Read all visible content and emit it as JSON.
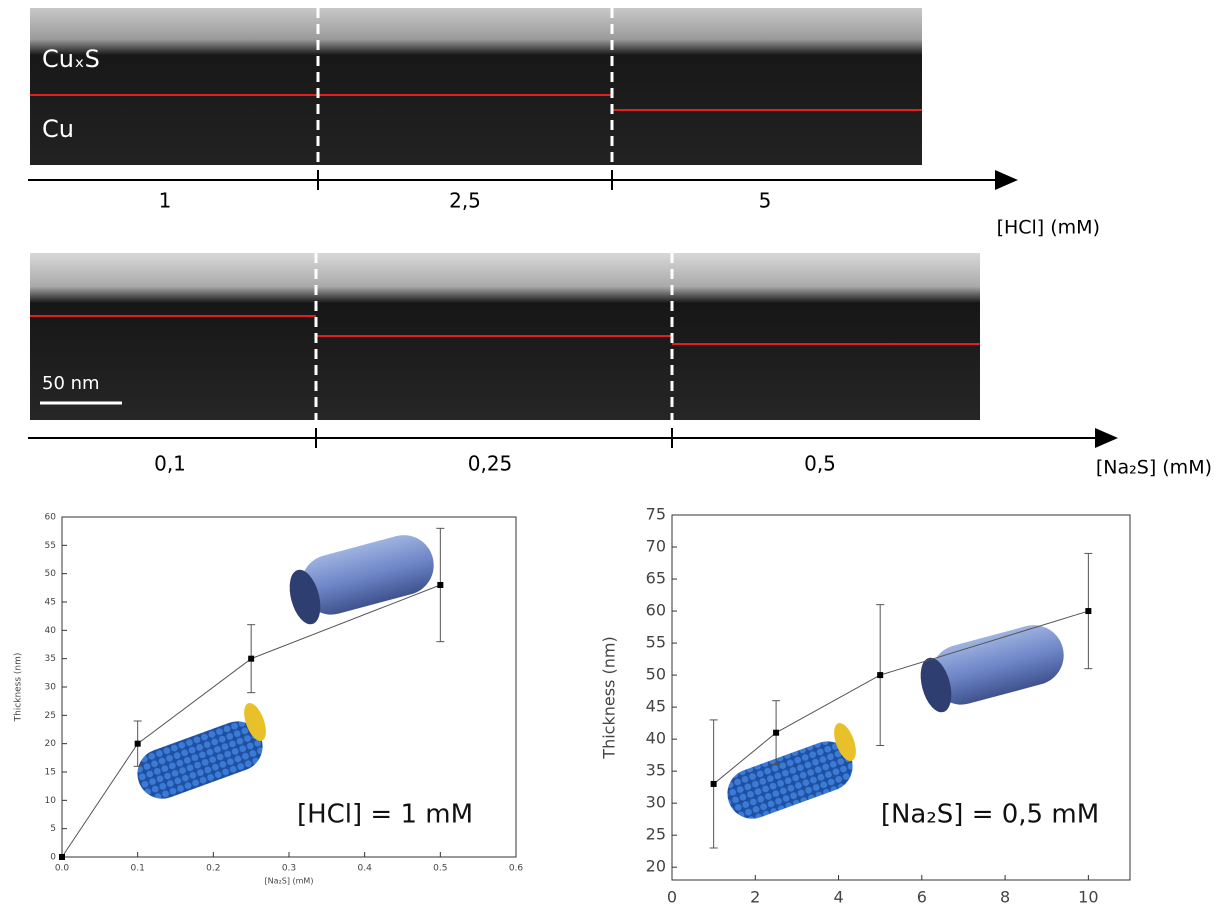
{
  "tem_panels": [
    {
      "layer_labels": [
        "CuₓS",
        "Cu"
      ],
      "segments": [
        "1",
        "2,5",
        "5"
      ],
      "axis_label": "[HCl] (mM)"
    },
    {
      "scale_bar": "50 nm",
      "segments": [
        "0,1",
        "0,25",
        "0,5"
      ],
      "axis_label": "[Na₂S] (mM)"
    }
  ],
  "chart_data": [
    {
      "type": "line",
      "xlabel": "[Na₂S] (mM)",
      "ylabel": "Thickness (nm)",
      "annotation": "[HCl] = 1 mM",
      "x": [
        0,
        0.1,
        0.25,
        0.5
      ],
      "series": [
        {
          "color": "#555555",
          "values": [
            0,
            20,
            35,
            48
          ],
          "errors": [
            null,
            4,
            6,
            10
          ]
        }
      ],
      "xlim": [
        0,
        0.6
      ],
      "xticks": [
        {
          "value": 0,
          "label": "0.0"
        },
        0.1,
        0.2,
        0.3,
        0.4,
        0.5,
        0.6
      ],
      "ylim": [
        0,
        60
      ],
      "yticks": [
        0,
        5,
        10,
        15,
        20,
        25,
        30,
        35,
        40,
        45,
        50,
        55,
        60
      ]
    },
    {
      "type": "line",
      "xlabel": "[HCl] (mM)",
      "ylabel": "Thickness (nm)",
      "annotation": "[Na₂S] = 0,5 mM",
      "x": [
        1,
        2.5,
        5,
        10
      ],
      "series": [
        {
          "color": "#555555",
          "values": [
            33,
            41,
            50,
            60
          ],
          "errors": [
            10,
            5,
            11,
            9
          ]
        }
      ],
      "xlim": [
        0,
        11
      ],
      "xticks": [
        0,
        2,
        4,
        6,
        8,
        10
      ],
      "ylim": [
        18,
        75
      ],
      "yticks": [
        20,
        25,
        30,
        35,
        40,
        45,
        50,
        55,
        60,
        65,
        70,
        75
      ]
    }
  ]
}
